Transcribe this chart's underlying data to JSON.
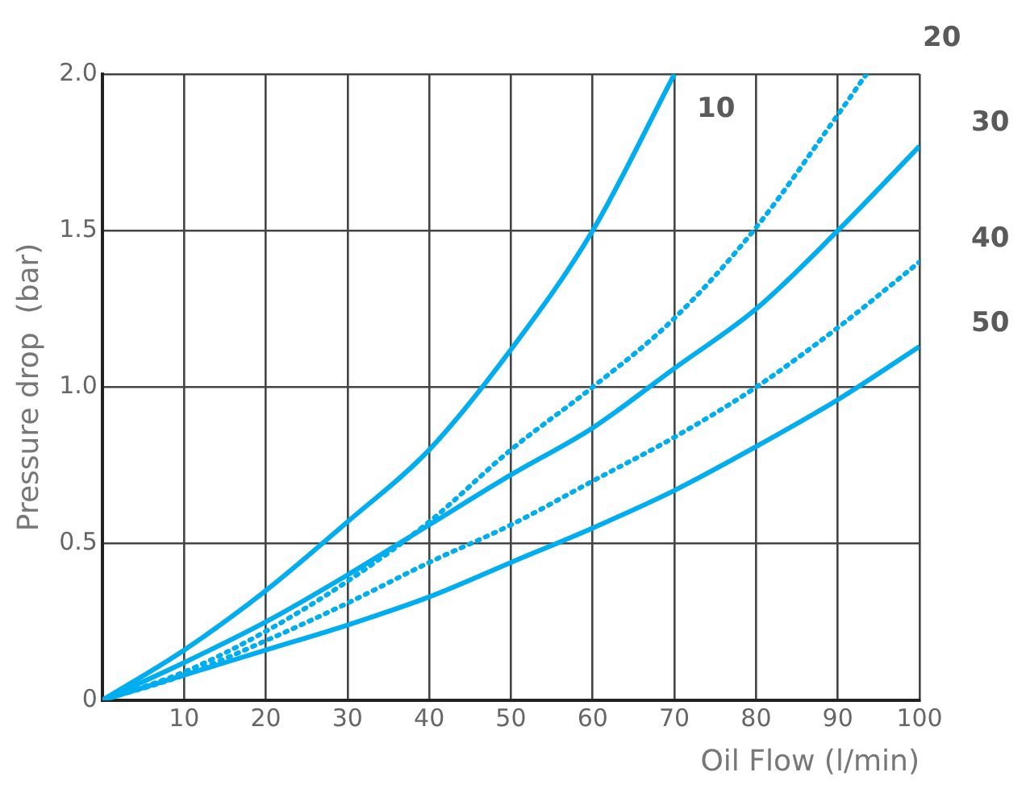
{
  "chart_data": {
    "type": "line",
    "xlabel": "Oil Flow (l/min)",
    "ylabel": "Pressure drop  (bar)",
    "xlim": [
      0,
      100
    ],
    "ylim": [
      0,
      2
    ],
    "xticks": [
      {
        "value": 0,
        "label": null
      },
      10,
      20,
      30,
      40,
      50,
      60,
      70,
      80,
      90,
      100
    ],
    "yticks": [
      0,
      0.5,
      {
        "value": 1,
        "label": "1.0"
      },
      1.5,
      {
        "value": 2,
        "label": "2.0"
      }
    ],
    "grid": true,
    "legend": false,
    "marker": "none",
    "series": [
      {
        "name": "10",
        "color": "#00aeef",
        "line_style": "solid",
        "x": [
          0,
          10,
          20,
          30,
          40,
          50,
          60,
          70
        ],
        "values": [
          0,
          0.16,
          0.35,
          0.57,
          0.8,
          1.12,
          1.5,
          2.0
        ]
      },
      {
        "name": "20",
        "color": "#00aeef",
        "line_style": "dotted",
        "x": [
          0,
          10,
          20,
          30,
          40,
          50,
          60,
          70,
          80,
          90,
          93.5
        ],
        "values": [
          0,
          0.09,
          0.22,
          0.38,
          0.57,
          0.8,
          1.0,
          1.22,
          1.51,
          1.87,
          2.0
        ]
      },
      {
        "name": "30",
        "color": "#00aeef",
        "line_style": "solid",
        "x": [
          0,
          10,
          20,
          30,
          40,
          50,
          60,
          70,
          80,
          90,
          100
        ],
        "values": [
          0,
          0.12,
          0.25,
          0.4,
          0.56,
          0.72,
          0.87,
          1.06,
          1.25,
          1.5,
          1.77
        ]
      },
      {
        "name": "40",
        "color": "#00aeef",
        "line_style": "dotted",
        "x": [
          0,
          10,
          20,
          30,
          40,
          50,
          60,
          70,
          80,
          90,
          100
        ],
        "values": [
          0,
          0.08,
          0.19,
          0.31,
          0.44,
          0.56,
          0.7,
          0.84,
          1.0,
          1.19,
          1.4
        ]
      },
      {
        "name": "50",
        "color": "#00aeef",
        "line_style": "solid",
        "x": [
          0,
          10,
          20,
          30,
          40,
          50,
          60,
          70,
          80,
          90,
          100
        ],
        "values": [
          0,
          0.08,
          0.16,
          0.24,
          0.33,
          0.44,
          0.55,
          0.67,
          0.81,
          0.96,
          1.13
        ]
      }
    ]
  }
}
